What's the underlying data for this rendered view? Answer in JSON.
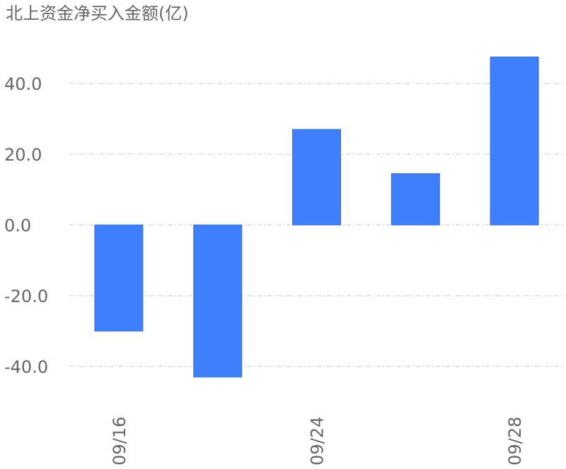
{
  "chart_data": {
    "type": "bar",
    "title": "北上资金净买入金额(亿)",
    "categories": [
      "09/16",
      "",
      "09/24",
      "",
      "09/28"
    ],
    "values": [
      -30,
      -43,
      27,
      14.5,
      47.5
    ],
    "ylim": [
      -48,
      55
    ],
    "y_ticks": [
      40,
      20,
      0,
      -20,
      -40
    ],
    "y_tick_labels": [
      "40.0",
      "20.0",
      "0.0",
      "-20.0",
      "-40.0"
    ],
    "x_tick_labels": [
      "09/16",
      "09/24",
      "09/28"
    ],
    "grid": true,
    "bar_color": "#3d7ffd"
  }
}
